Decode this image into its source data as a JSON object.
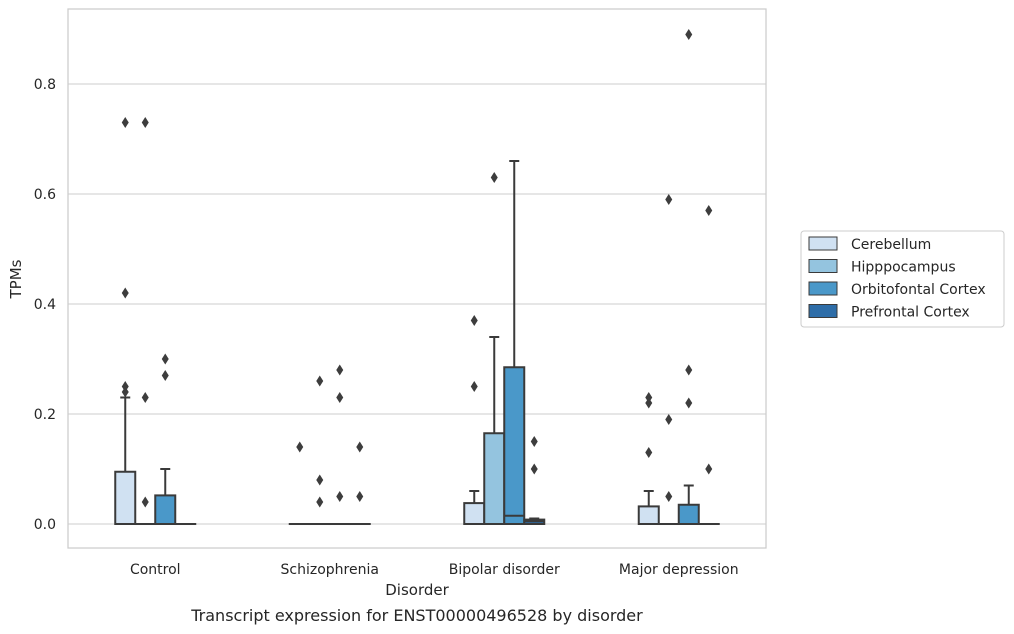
{
  "caption": "Transcript expression for ENST00000496528 by disorder",
  "colors": {
    "Cerebellum": "#d0e1f2",
    "Hipppocampus": "#94c4df",
    "Orbitofontal Cortex": "#4a98c9",
    "Prefrontal Cortex": "#2e6da8",
    "box_line": "#3a3a3a",
    "grid": "#cccccc",
    "frame": "#cccccc"
  },
  "chart_data": {
    "type": "box",
    "title": "",
    "xlabel": "Disorder",
    "ylabel": "TPMs",
    "ylim": [
      -0.043,
      0.935
    ],
    "yticks": [
      0.0,
      0.2,
      0.4,
      0.6,
      0.8
    ],
    "ytick_labels": [
      "0.0",
      "0.2",
      "0.4",
      "0.6",
      "0.8"
    ],
    "grid": "horizontal",
    "legend_position": "center-right outside",
    "categories": [
      "Control",
      "Schizophrenia",
      "Bipolar disorder",
      "Major depression"
    ],
    "hue_order": [
      "Cerebellum",
      "Hipppocampus",
      "Orbitofontal Cortex",
      "Prefrontal Cortex"
    ],
    "boxes": [
      {
        "category": "Control",
        "hue": "Cerebellum",
        "q1": 0,
        "median": 0,
        "q3": 0.095,
        "whisker_low": 0,
        "whisker_high": 0.23,
        "outliers": [
          0.24,
          0.25,
          0.42,
          0.73
        ]
      },
      {
        "category": "Control",
        "hue": "Hipppocampus",
        "q1": 0,
        "median": 0,
        "q3": 0,
        "whisker_low": 0,
        "whisker_high": 0,
        "outliers": [
          0.04,
          0.23,
          0.73
        ]
      },
      {
        "category": "Control",
        "hue": "Orbitofontal Cortex",
        "q1": 0,
        "median": 0,
        "q3": 0.052,
        "whisker_low": 0,
        "whisker_high": 0.1,
        "outliers": [
          0.27,
          0.3
        ]
      },
      {
        "category": "Control",
        "hue": "Prefrontal Cortex",
        "q1": 0,
        "median": 0,
        "q3": 0,
        "whisker_low": 0,
        "whisker_high": 0,
        "outliers": []
      },
      {
        "category": "Schizophrenia",
        "hue": "Cerebellum",
        "q1": 0,
        "median": 0,
        "q3": 0,
        "whisker_low": 0,
        "whisker_high": 0,
        "outliers": [
          0.14
        ]
      },
      {
        "category": "Schizophrenia",
        "hue": "Hipppocampus",
        "q1": 0,
        "median": 0,
        "q3": 0,
        "whisker_low": 0,
        "whisker_high": 0,
        "outliers": [
          0.04,
          0.08,
          0.26
        ]
      },
      {
        "category": "Schizophrenia",
        "hue": "Orbitofontal Cortex",
        "q1": 0,
        "median": 0,
        "q3": 0,
        "whisker_low": 0,
        "whisker_high": 0,
        "outliers": [
          0.05,
          0.23,
          0.28
        ]
      },
      {
        "category": "Schizophrenia",
        "hue": "Prefrontal Cortex",
        "q1": 0,
        "median": 0,
        "q3": 0,
        "whisker_low": 0,
        "whisker_high": 0,
        "outliers": [
          0.05,
          0.14
        ]
      },
      {
        "category": "Bipolar disorder",
        "hue": "Cerebellum",
        "q1": 0,
        "median": 0,
        "q3": 0.038,
        "whisker_low": 0,
        "whisker_high": 0.06,
        "outliers": [
          0.25,
          0.37
        ]
      },
      {
        "category": "Bipolar disorder",
        "hue": "Hipppocampus",
        "q1": 0,
        "median": 0,
        "q3": 0.165,
        "whisker_low": 0,
        "whisker_high": 0.34,
        "outliers": [
          0.63
        ]
      },
      {
        "category": "Bipolar disorder",
        "hue": "Orbitofontal Cortex",
        "q1": 0,
        "median": 0.015,
        "q3": 0.285,
        "whisker_low": 0,
        "whisker_high": 0.66,
        "outliers": []
      },
      {
        "category": "Bipolar disorder",
        "hue": "Prefrontal Cortex",
        "q1": 0,
        "median": 0.005,
        "q3": 0.008,
        "whisker_low": 0,
        "whisker_high": 0.01,
        "outliers": [
          0.1,
          0.15
        ]
      },
      {
        "category": "Major depression",
        "hue": "Cerebellum",
        "q1": 0,
        "median": 0,
        "q3": 0.032,
        "whisker_low": 0,
        "whisker_high": 0.06,
        "outliers": [
          0.13,
          0.22,
          0.23
        ]
      },
      {
        "category": "Major depression",
        "hue": "Hipppocampus",
        "q1": 0,
        "median": 0,
        "q3": 0,
        "whisker_low": 0,
        "whisker_high": 0,
        "outliers": [
          0.05,
          0.19,
          0.59
        ]
      },
      {
        "category": "Major depression",
        "hue": "Orbitofontal Cortex",
        "q1": 0,
        "median": 0,
        "q3": 0.035,
        "whisker_low": 0,
        "whisker_high": 0.07,
        "outliers": [
          0.22,
          0.28,
          0.89
        ]
      },
      {
        "category": "Major depression",
        "hue": "Prefrontal Cortex",
        "q1": 0,
        "median": 0,
        "q3": 0,
        "whisker_low": 0,
        "whisker_high": 0,
        "outliers": [
          0.1,
          0.57
        ]
      }
    ]
  }
}
